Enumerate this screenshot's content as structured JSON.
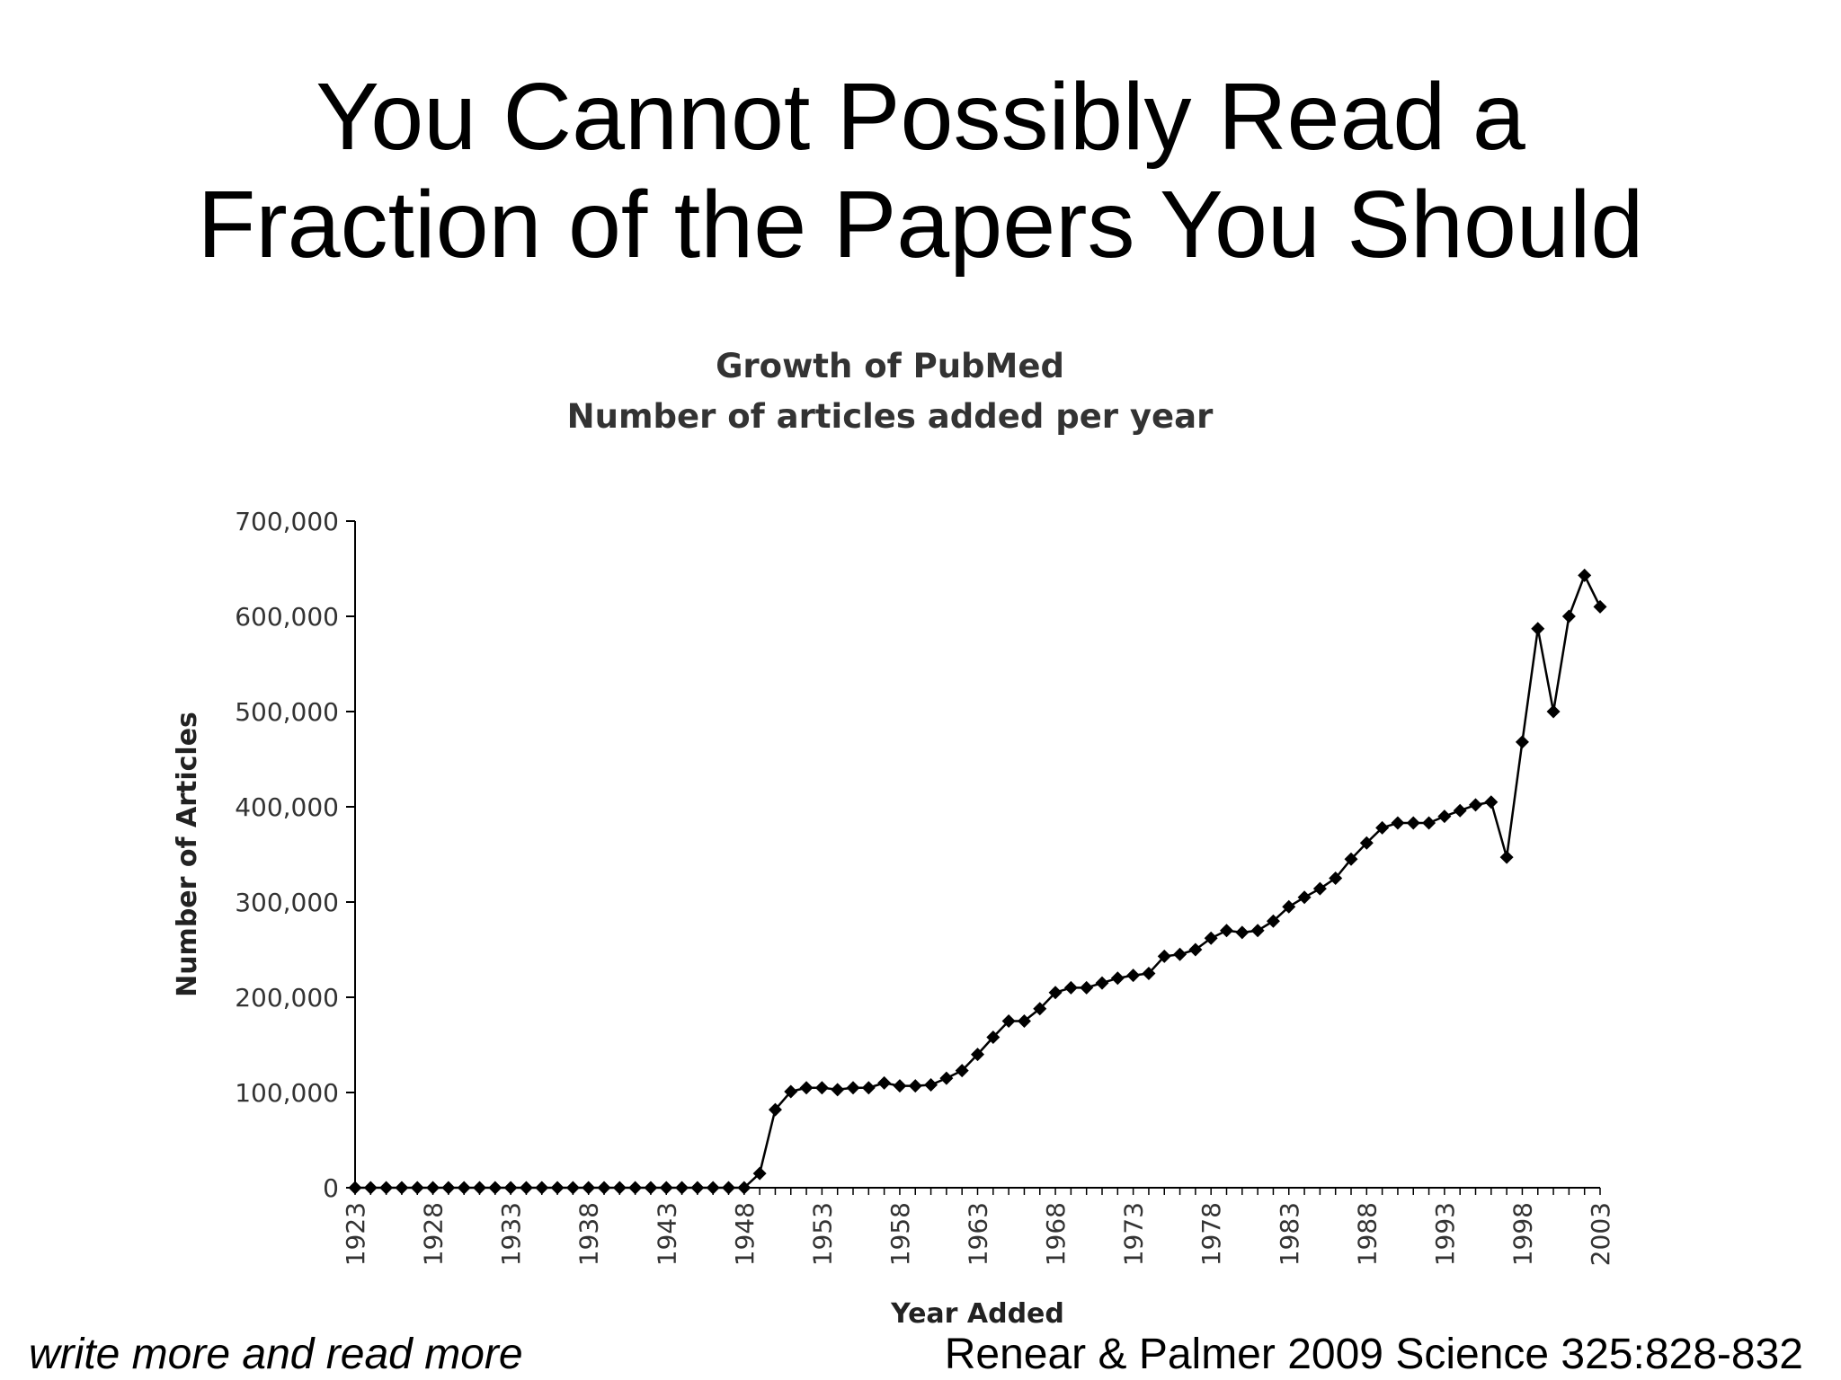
{
  "slide": {
    "title_lines": [
      "You Cannot Possibly Read a",
      "Fraction of the Papers You Should"
    ],
    "footer_left": "write more and read more",
    "footer_right": "Renear & Palmer 2009 Science 325:828-832"
  },
  "chart_data": {
    "type": "line",
    "title": "Growth of PubMed",
    "subtitle": "Number of articles added per year",
    "xlabel": "Year Added",
    "ylabel": "Number of Articles",
    "ylim": [
      0,
      700000
    ],
    "yticks": [
      "0",
      "100,000",
      "200,000",
      "300,000",
      "400,000",
      "500,000",
      "600,000",
      "700,000"
    ],
    "xticks": [
      "1923",
      "1928",
      "1933",
      "1938",
      "1943",
      "1948",
      "1953",
      "1958",
      "1963",
      "1968",
      "1973",
      "1978",
      "1983",
      "1988",
      "1993",
      "1998",
      "2003"
    ],
    "line_color": "#000000",
    "series": [
      {
        "x": [
          1923,
          1924,
          1925,
          1926,
          1927,
          1928,
          1929,
          1930,
          1931,
          1932,
          1933,
          1934,
          1935,
          1936,
          1937,
          1938,
          1939,
          1940,
          1941,
          1942,
          1943,
          1944,
          1945,
          1946,
          1947,
          1948,
          1949,
          1950,
          1951,
          1952,
          1953,
          1954,
          1955,
          1956,
          1957,
          1958,
          1959,
          1960,
          1961,
          1962,
          1963,
          1964,
          1965,
          1966,
          1967,
          1968,
          1969,
          1970,
          1971,
          1972,
          1973,
          1974,
          1975,
          1976,
          1977,
          1978,
          1979,
          1980,
          1981,
          1982,
          1983,
          1984,
          1985,
          1986,
          1987,
          1988,
          1989,
          1990,
          1991,
          1992,
          1993,
          1994,
          1995,
          1996,
          1997,
          1998,
          1999,
          2000,
          2001,
          2002,
          2003
        ],
        "values": [
          0,
          0,
          0,
          0,
          0,
          0,
          0,
          0,
          0,
          0,
          0,
          0,
          0,
          0,
          0,
          0,
          0,
          0,
          0,
          0,
          0,
          0,
          0,
          0,
          0,
          0,
          15000,
          82000,
          101000,
          105000,
          105000,
          103000,
          105000,
          105000,
          110000,
          107000,
          107000,
          108000,
          115000,
          123000,
          140000,
          158000,
          175000,
          175000,
          188000,
          205000,
          210000,
          210000,
          215000,
          220000,
          223000,
          225000,
          243000,
          245000,
          250000,
          262000,
          270000,
          268000,
          270000,
          280000,
          295000,
          305000,
          314000,
          325000,
          345000,
          362000,
          378000,
          383000,
          383000,
          383000,
          390000,
          396000,
          402000,
          405000,
          347000,
          468000,
          587000,
          500000,
          600000,
          643000,
          610000
        ]
      }
    ]
  }
}
